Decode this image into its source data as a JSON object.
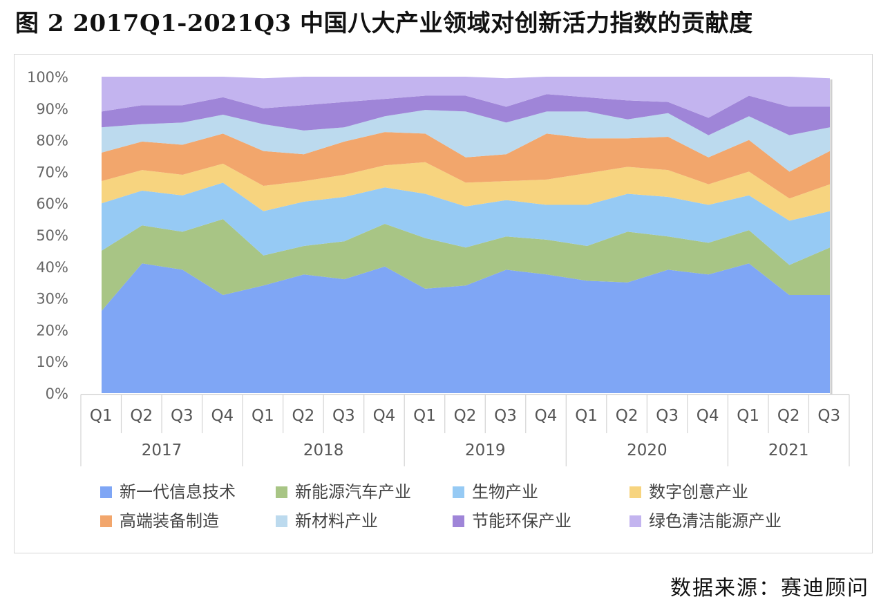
{
  "title": "图 2 2017Q1-2021Q3 中国八大产业领域对创新活力指数的贡献度",
  "source": "数据来源：赛迪顾问",
  "chart_data": {
    "type": "area",
    "stacked": true,
    "percent": true,
    "title": "",
    "xlabel": "",
    "ylabel": "",
    "ylim": [
      0,
      100
    ],
    "y_ticks": [
      "0%",
      "10%",
      "20%",
      "30%",
      "40%",
      "50%",
      "60%",
      "70%",
      "80%",
      "90%",
      "100%"
    ],
    "quarters": [
      "Q1",
      "Q2",
      "Q3",
      "Q4",
      "Q1",
      "Q2",
      "Q3",
      "Q4",
      "Q1",
      "Q2",
      "Q3",
      "Q4",
      "Q1",
      "Q2",
      "Q3",
      "Q4",
      "Q1",
      "Q2",
      "Q3"
    ],
    "years": [
      {
        "label": "2017",
        "span": 4
      },
      {
        "label": "2018",
        "span": 4
      },
      {
        "label": "2019",
        "span": 4
      },
      {
        "label": "2020",
        "span": 4
      },
      {
        "label": "2021",
        "span": 3
      }
    ],
    "legend_position": "bottom",
    "series": [
      {
        "name": "新一代信息技术",
        "color": "#7fa6f5",
        "values": [
          26,
          41,
          39,
          31,
          34,
          37.5,
          36,
          40,
          33,
          34,
          39,
          37.5,
          35.5,
          35,
          39,
          37.5,
          41,
          31,
          31
        ]
      },
      {
        "name": "新能源汽车产业",
        "color": "#a8c585",
        "values": [
          19,
          12,
          12,
          24,
          9.5,
          9,
          12,
          13.5,
          16,
          12,
          10.5,
          11,
          11,
          16,
          10.5,
          10,
          10.5,
          9.5,
          15
        ]
      },
      {
        "name": "生物产业",
        "color": "#96caf4",
        "values": [
          15,
          11,
          11.5,
          11.5,
          14,
          14,
          14,
          11.5,
          14,
          13,
          11.5,
          11,
          13,
          12,
          12.5,
          12,
          11,
          14,
          11.5
        ]
      },
      {
        "name": "数字创意产业",
        "color": "#f7d47f",
        "values": [
          7,
          6.5,
          6.5,
          6,
          8,
          6.5,
          7,
          7,
          10,
          7.5,
          6,
          8,
          10,
          8.5,
          8.5,
          6.5,
          7.5,
          7,
          8.5
        ]
      },
      {
        "name": "高端装备制造",
        "color": "#f2a66c",
        "values": [
          9,
          9,
          9.5,
          9.5,
          11,
          8.5,
          10.5,
          10.5,
          9,
          8,
          8.5,
          14.5,
          11,
          9,
          10.5,
          8.5,
          10,
          8.5,
          10.5
        ]
      },
      {
        "name": "新材料产业",
        "color": "#bcdaee",
        "values": [
          8,
          5.5,
          7,
          6,
          8.5,
          7.5,
          4.5,
          5,
          7.5,
          14.5,
          10,
          7,
          8.5,
          6,
          7.5,
          7,
          7.5,
          11.5,
          7.5
        ]
      },
      {
        "name": "节能环保产业",
        "color": "#9f85d8",
        "values": [
          5,
          6,
          5.5,
          5.5,
          5,
          8,
          8,
          5.5,
          4.5,
          5,
          5,
          5.5,
          4.5,
          6,
          3.5,
          5.5,
          6.5,
          9,
          6.5
        ]
      },
      {
        "name": "绿色清洁能源产业",
        "color": "#c3b4ef",
        "values": [
          11,
          9,
          9,
          6.5,
          9.5,
          9,
          8,
          7,
          6,
          6,
          9,
          5.5,
          6.5,
          7.5,
          8,
          13,
          6,
          9.5,
          9
        ]
      }
    ]
  }
}
